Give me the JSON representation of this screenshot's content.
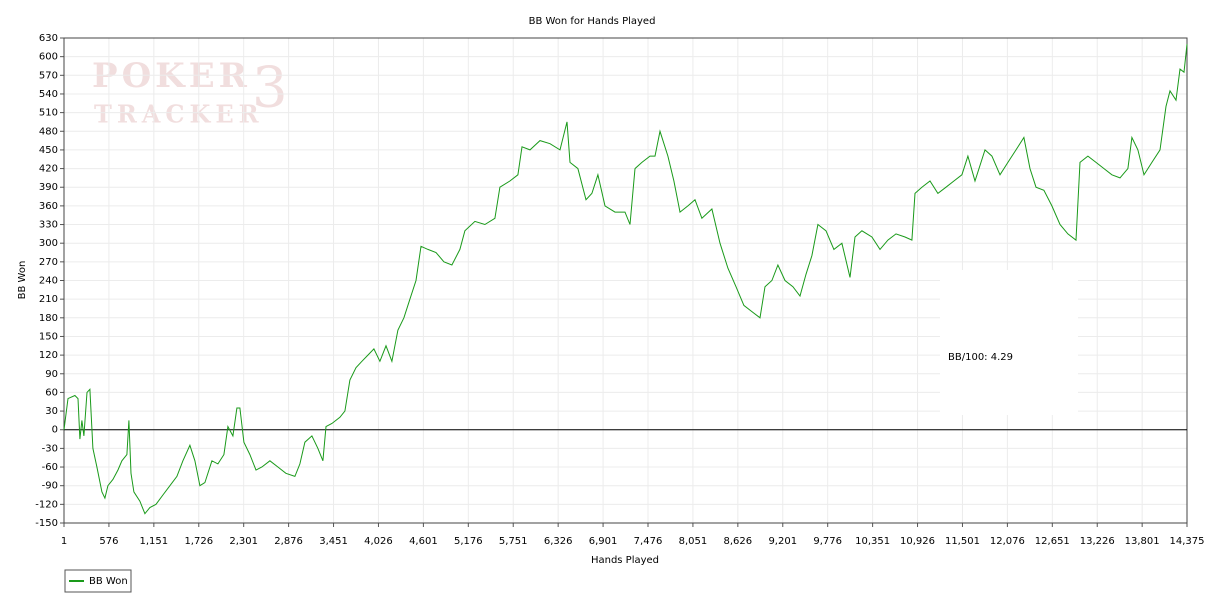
{
  "chart_data": {
    "type": "line",
    "title": "BB Won for Hands Played",
    "xlabel": "Hands Played",
    "ylabel": "BB Won",
    "watermark": [
      "POKER",
      "TRACKER",
      "3"
    ],
    "annotation": "BB/100: 4.29",
    "xlim": [
      1,
      14375
    ],
    "ylim": [
      -150,
      630
    ],
    "xticks": [
      1,
      576,
      {
        "value": 1151,
        "label": "1,151"
      },
      {
        "value": 1726,
        "label": "1,726"
      },
      {
        "value": 2301,
        "label": "2,301"
      },
      {
        "value": 2876,
        "label": "2,876"
      },
      {
        "value": 3451,
        "label": "3,451"
      },
      {
        "value": 4026,
        "label": "4,026"
      },
      {
        "value": 4601,
        "label": "4,601"
      },
      {
        "value": 5176,
        "label": "5,176"
      },
      {
        "value": 5751,
        "label": "5,751"
      },
      {
        "value": 6326,
        "label": "6,326"
      },
      {
        "value": 6901,
        "label": "6,901"
      },
      {
        "value": 7476,
        "label": "7,476"
      },
      {
        "value": 8051,
        "label": "8,051"
      },
      {
        "value": 8626,
        "label": "8,626"
      },
      {
        "value": 9201,
        "label": "9,201"
      },
      {
        "value": 9776,
        "label": "9,776"
      },
      {
        "value": 10351,
        "label": "10,351"
      },
      {
        "value": 10926,
        "label": "10,926"
      },
      {
        "value": 11501,
        "label": "11,501"
      },
      {
        "value": 12076,
        "label": "12,076"
      },
      {
        "value": 12651,
        "label": "12,651"
      },
      {
        "value": 13226,
        "label": "13,226"
      },
      {
        "value": 13801,
        "label": "13,801"
      },
      {
        "value": 14375,
        "label": "14,375"
      }
    ],
    "yticks": [
      -150,
      -120,
      -90,
      -60,
      -30,
      0,
      30,
      60,
      90,
      120,
      150,
      180,
      210,
      240,
      270,
      300,
      330,
      360,
      390,
      420,
      450,
      480,
      510,
      540,
      570,
      600,
      630
    ],
    "grid": true,
    "legend": "bottom-left",
    "x": [
      1,
      52,
      140,
      180,
      205,
      230,
      256,
      295,
      333,
      371,
      422,
      486,
      525,
      563,
      627,
      691,
      742,
      806,
      832,
      858,
      896,
      973,
      1037,
      1101,
      1178,
      1267,
      1357,
      1446,
      1523,
      1613,
      1677,
      1741,
      1805,
      1894,
      1971,
      2048,
      2099,
      2163,
      2214,
      2253,
      2304,
      2381,
      2458,
      2534,
      2637,
      2739,
      2841,
      2957,
      3021,
      3085,
      3174,
      3251,
      3315,
      3354,
      3430,
      3533,
      3597,
      3661,
      3738,
      3814,
      3891,
      3968,
      4045,
      4122,
      4198,
      4275,
      4352,
      4429,
      4506,
      4570,
      4659,
      4762,
      4864,
      4966,
      5069,
      5133,
      5261,
      5389,
      5517,
      5581,
      5709,
      5811,
      5863,
      5965,
      6093,
      6221,
      6349,
      6439,
      6477,
      6579,
      6682,
      6758,
      6835,
      6925,
      7053,
      7181,
      7245,
      7309,
      7398,
      7501,
      7565,
      7629,
      7731,
      7808,
      7885,
      7987,
      8077,
      8166,
      8294,
      8397,
      8499,
      8602,
      8704,
      8806,
      8909,
      8973,
      9062,
      9139,
      9229,
      9331,
      9421,
      9498,
      9574,
      9651,
      9754,
      9856,
      9958,
      10061,
      10125,
      10214,
      10342,
      10445,
      10547,
      10650,
      10765,
      10854,
      10893,
      10982,
      11085,
      11187,
      11290,
      11392,
      11494,
      11571,
      11661,
      11789,
      11878,
      11981,
      12083,
      12186,
      12288,
      12365,
      12442,
      12544,
      12646,
      12749,
      12851,
      12954,
      13005,
      13107,
      13210,
      13312,
      13414,
      13517,
      13619,
      13670,
      13747,
      13824,
      13926,
      14029,
      14106,
      14157,
      14234,
      14285,
      14336,
      14375
    ],
    "series": [
      {
        "name": "BB Won",
        "color": "#1a9a1a",
        "values": [
          0,
          50,
          55,
          50,
          -15,
          15,
          -10,
          60,
          65,
          -30,
          -60,
          -100,
          -110,
          -90,
          -80,
          -65,
          -50,
          -40,
          15,
          -70,
          -100,
          -115,
          -135,
          -125,
          -120,
          -105,
          -90,
          -75,
          -50,
          -25,
          -50,
          -90,
          -85,
          -50,
          -55,
          -40,
          5,
          -10,
          35,
          35,
          -20,
          -40,
          -65,
          -60,
          -50,
          -60,
          -70,
          -75,
          -55,
          -20,
          -10,
          -30,
          -50,
          5,
          10,
          20,
          30,
          80,
          100,
          110,
          120,
          130,
          110,
          135,
          110,
          160,
          180,
          210,
          240,
          295,
          290,
          285,
          270,
          265,
          290,
          320,
          335,
          330,
          340,
          390,
          400,
          410,
          455,
          450,
          465,
          460,
          450,
          495,
          430,
          420,
          370,
          380,
          410,
          360,
          350,
          350,
          330,
          420,
          430,
          440,
          440,
          480,
          440,
          400,
          350,
          360,
          370,
          340,
          355,
          300,
          260,
          230,
          200,
          190,
          180,
          230,
          240,
          265,
          240,
          230,
          215,
          250,
          280,
          330,
          320,
          290,
          300,
          245,
          310,
          320,
          310,
          290,
          305,
          315,
          310,
          305,
          380,
          390,
          400,
          380,
          390,
          400,
          410,
          440,
          400,
          450,
          440,
          410,
          430,
          450,
          470,
          420,
          390,
          385,
          360,
          330,
          315,
          305,
          430,
          440,
          430,
          420,
          410,
          405,
          420,
          470,
          450,
          410,
          430,
          450,
          520,
          545,
          530,
          580,
          575,
          620
        ]
      }
    ]
  }
}
